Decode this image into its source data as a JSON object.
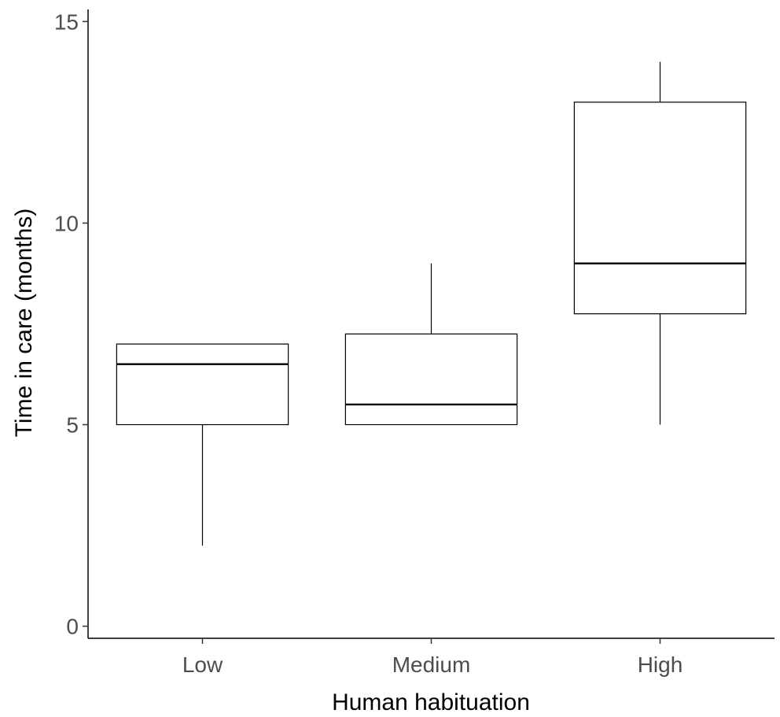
{
  "chart_data": {
    "type": "boxplot",
    "title": "",
    "xlabel": "Human habituation",
    "ylabel": "Time in care (months)",
    "categories": [
      "Low",
      "Medium",
      "High"
    ],
    "boxes": [
      {
        "category": "Low",
        "whisker_low": 2,
        "q1": 5,
        "median": 6.5,
        "q3": 7,
        "whisker_high": 7
      },
      {
        "category": "Medium",
        "whisker_low": 5,
        "q1": 5,
        "median": 5.5,
        "q3": 7.25,
        "whisker_high": 9
      },
      {
        "category": "High",
        "whisker_low": 5,
        "q1": 7.75,
        "median": 9,
        "q3": 13,
        "whisker_high": 14
      }
    ],
    "ylim": [
      -0.3,
      15.3
    ],
    "yticks": [
      0,
      5,
      10,
      15
    ],
    "ytick_labels": [
      "0",
      "5",
      "10",
      "15"
    ],
    "grid": false,
    "legend": "none"
  }
}
